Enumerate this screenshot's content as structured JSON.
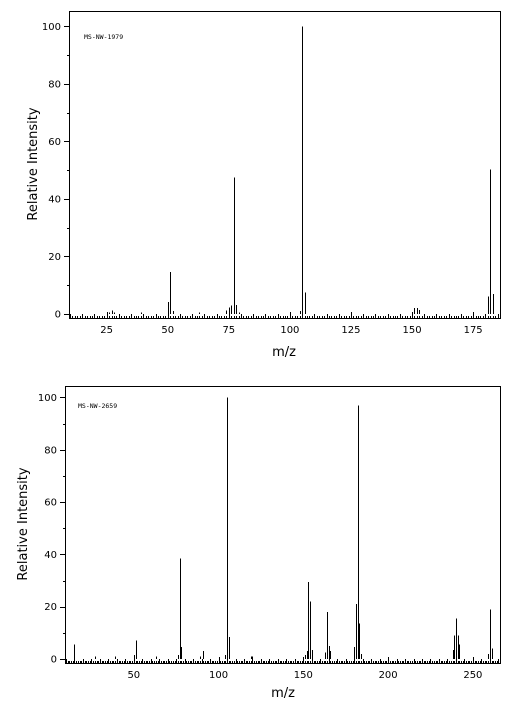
{
  "chart_data": [
    {
      "type": "bar",
      "annotation": "MS-NW-1979",
      "xlabel": "m/z",
      "ylabel": "Relative Intensity",
      "xlim": [
        10,
        186
      ],
      "ylim": [
        0,
        105
      ],
      "xticks": [
        25,
        50,
        75,
        100,
        125,
        150,
        175
      ],
      "yticks": [
        0,
        20,
        40,
        60,
        80,
        100
      ],
      "grid": false,
      "x": [
        26,
        27,
        28,
        39,
        50,
        51,
        52,
        63,
        74,
        75,
        76,
        77,
        78,
        79,
        104,
        105,
        106,
        151,
        152,
        153,
        181,
        182,
        183
      ],
      "values": [
        0.5,
        1.2,
        0.5,
        0.5,
        4.2,
        14.6,
        1.0,
        0.5,
        1.3,
        2.2,
        3.0,
        47.5,
        3.1,
        0.5,
        1.0,
        100,
        7.5,
        2.1,
        2.0,
        1.4,
        6.0,
        50.2,
        7.0
      ]
    },
    {
      "type": "bar",
      "annotation": "MS-NW-2659",
      "xlabel": "m/z",
      "ylabel": "Relative Intensity",
      "xlim": [
        10,
        266
      ],
      "ylim": [
        0,
        104
      ],
      "xticks": [
        50,
        100,
        150,
        200,
        250
      ],
      "yticks": [
        0,
        20,
        40,
        60,
        80,
        100
      ],
      "grid": false,
      "x": [
        15,
        27,
        39,
        50,
        51,
        63,
        76,
        77,
        78,
        89,
        91,
        104,
        105,
        106,
        119,
        120,
        151,
        152,
        153,
        154,
        155,
        163,
        164,
        165,
        166,
        180,
        181,
        182,
        183,
        184,
        238,
        239,
        240,
        241,
        242,
        259,
        260,
        261
      ],
      "values": [
        5.5,
        1.0,
        1.0,
        1.5,
        7.0,
        1.0,
        1.5,
        38.5,
        4.5,
        1.0,
        3.0,
        1.5,
        100,
        8.5,
        1.0,
        1.0,
        1.5,
        3.0,
        29.5,
        22.0,
        3.5,
        2.5,
        18.0,
        5.0,
        3.0,
        4.5,
        21.0,
        97.0,
        13.5,
        2.0,
        3.5,
        9.0,
        15.5,
        9.0,
        5.5,
        2.0,
        19.0,
        4.0
      ]
    }
  ]
}
